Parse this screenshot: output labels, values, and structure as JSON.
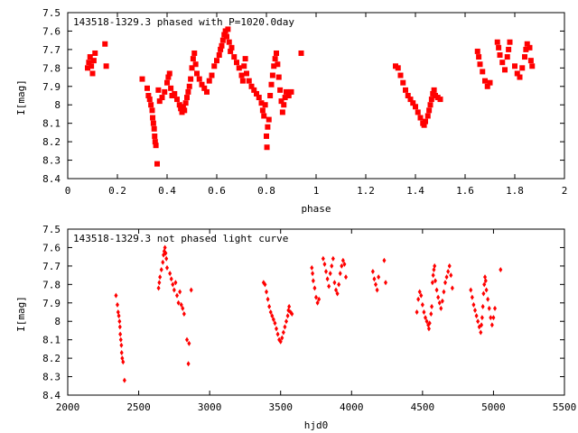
{
  "chart_data": [
    {
      "type": "scatter",
      "title": "143518-1329.3 phased with P=1020.0day",
      "xlabel": "phase",
      "ylabel": "I[mag]",
      "xlim": [
        0,
        2
      ],
      "ylim": [
        7.5,
        8.4
      ],
      "y_inverted": true,
      "x_ticks": [
        0,
        0.2,
        0.4,
        0.6,
        0.8,
        1,
        1.2,
        1.4,
        1.6,
        1.8,
        2
      ],
      "x_tick_labels": [
        "0",
        "0.2",
        "0.4",
        "0.6",
        "0.8",
        "1",
        "1.2",
        "1.4",
        "1.6",
        "1.8",
        "2"
      ],
      "y_ticks": [
        7.5,
        7.6,
        7.7,
        7.8,
        7.9,
        8,
        8.1,
        8.2,
        8.3,
        8.4
      ],
      "y_tick_labels": [
        "7.5",
        "7.6",
        "7.7",
        "7.8",
        "7.9",
        "8",
        "8.1",
        "8.2",
        "8.3",
        "8.4"
      ],
      "marker": "square",
      "color": "#ff0000",
      "grid": false,
      "points": [
        [
          0.08,
          7.8
        ],
        [
          0.085,
          7.77
        ],
        [
          0.09,
          7.74
        ],
        [
          0.095,
          7.79
        ],
        [
          0.1,
          7.83
        ],
        [
          0.105,
          7.76
        ],
        [
          0.11,
          7.72
        ],
        [
          0.15,
          7.67
        ],
        [
          0.155,
          7.79
        ],
        [
          0.3,
          7.86
        ],
        [
          0.32,
          7.91
        ],
        [
          0.325,
          7.95
        ],
        [
          0.33,
          7.97
        ],
        [
          0.335,
          8.0
        ],
        [
          0.34,
          8.03
        ],
        [
          0.342,
          8.07
        ],
        [
          0.345,
          8.1
        ],
        [
          0.348,
          8.13
        ],
        [
          0.35,
          8.17
        ],
        [
          0.352,
          8.2
        ],
        [
          0.355,
          8.22
        ],
        [
          0.36,
          8.32
        ],
        [
          0.365,
          7.92
        ],
        [
          0.37,
          7.98
        ],
        [
          0.38,
          7.96
        ],
        [
          0.39,
          7.93
        ],
        [
          0.4,
          7.88
        ],
        [
          0.405,
          7.85
        ],
        [
          0.41,
          7.83
        ],
        [
          0.415,
          7.91
        ],
        [
          0.42,
          7.95
        ],
        [
          0.43,
          7.94
        ],
        [
          0.44,
          7.97
        ],
        [
          0.45,
          8.0
        ],
        [
          0.455,
          8.02
        ],
        [
          0.46,
          8.04
        ],
        [
          0.465,
          8.01
        ],
        [
          0.47,
          8.03
        ],
        [
          0.475,
          7.99
        ],
        [
          0.48,
          7.96
        ],
        [
          0.485,
          7.93
        ],
        [
          0.49,
          7.9
        ],
        [
          0.495,
          7.86
        ],
        [
          0.5,
          7.8
        ],
        [
          0.505,
          7.75
        ],
        [
          0.51,
          7.72
        ],
        [
          0.515,
          7.78
        ],
        [
          0.52,
          7.83
        ],
        [
          0.53,
          7.86
        ],
        [
          0.54,
          7.89
        ],
        [
          0.55,
          7.91
        ],
        [
          0.56,
          7.93
        ],
        [
          0.57,
          7.87
        ],
        [
          0.58,
          7.84
        ],
        [
          0.59,
          7.79
        ],
        [
          0.6,
          7.76
        ],
        [
          0.61,
          7.73
        ],
        [
          0.615,
          7.7
        ],
        [
          0.62,
          7.68
        ],
        [
          0.625,
          7.65
        ],
        [
          0.63,
          7.62
        ],
        [
          0.635,
          7.6
        ],
        [
          0.64,
          7.63
        ],
        [
          0.645,
          7.59
        ],
        [
          0.65,
          7.66
        ],
        [
          0.655,
          7.71
        ],
        [
          0.66,
          7.69
        ],
        [
          0.67,
          7.74
        ],
        [
          0.68,
          7.77
        ],
        [
          0.69,
          7.8
        ],
        [
          0.7,
          7.84
        ],
        [
          0.705,
          7.87
        ],
        [
          0.71,
          7.79
        ],
        [
          0.715,
          7.75
        ],
        [
          0.72,
          7.83
        ],
        [
          0.73,
          7.87
        ],
        [
          0.74,
          7.9
        ],
        [
          0.75,
          7.92
        ],
        [
          0.76,
          7.94
        ],
        [
          0.77,
          7.96
        ],
        [
          0.78,
          7.99
        ],
        [
          0.785,
          8.03
        ],
        [
          0.79,
          8.06
        ],
        [
          0.795,
          8.0
        ],
        [
          0.8,
          8.17
        ],
        [
          0.802,
          8.23
        ],
        [
          0.805,
          8.12
        ],
        [
          0.81,
          8.08
        ],
        [
          0.815,
          7.95
        ],
        [
          0.82,
          7.89
        ],
        [
          0.825,
          7.84
        ],
        [
          0.83,
          7.79
        ],
        [
          0.835,
          7.75
        ],
        [
          0.84,
          7.72
        ],
        [
          0.845,
          7.78
        ],
        [
          0.85,
          7.85
        ],
        [
          0.855,
          7.92
        ],
        [
          0.86,
          7.98
        ],
        [
          0.865,
          8.04
        ],
        [
          0.87,
          8.0
        ],
        [
          0.875,
          7.96
        ],
        [
          0.88,
          7.93
        ],
        [
          0.89,
          7.95
        ],
        [
          0.9,
          7.93
        ],
        [
          0.94,
          7.72
        ],
        [
          1.32,
          7.79
        ],
        [
          1.33,
          7.8
        ],
        [
          1.34,
          7.84
        ],
        [
          1.35,
          7.88
        ],
        [
          1.36,
          7.92
        ],
        [
          1.37,
          7.95
        ],
        [
          1.38,
          7.97
        ],
        [
          1.39,
          7.99
        ],
        [
          1.4,
          8.01
        ],
        [
          1.41,
          8.04
        ],
        [
          1.42,
          8.07
        ],
        [
          1.43,
          8.1
        ],
        [
          1.435,
          8.11
        ],
        [
          1.44,
          8.09
        ],
        [
          1.45,
          8.06
        ],
        [
          1.455,
          8.03
        ],
        [
          1.46,
          8.0
        ],
        [
          1.465,
          7.97
        ],
        [
          1.47,
          7.94
        ],
        [
          1.475,
          7.92
        ],
        [
          1.48,
          7.95
        ],
        [
          1.49,
          7.96
        ],
        [
          1.5,
          7.97
        ],
        [
          1.65,
          7.71
        ],
        [
          1.655,
          7.74
        ],
        [
          1.66,
          7.78
        ],
        [
          1.67,
          7.82
        ],
        [
          1.68,
          7.87
        ],
        [
          1.69,
          7.9
        ],
        [
          1.7,
          7.88
        ],
        [
          1.73,
          7.66
        ],
        [
          1.735,
          7.69
        ],
        [
          1.74,
          7.73
        ],
        [
          1.75,
          7.77
        ],
        [
          1.76,
          7.81
        ],
        [
          1.77,
          7.74
        ],
        [
          1.775,
          7.7
        ],
        [
          1.78,
          7.66
        ],
        [
          1.8,
          7.79
        ],
        [
          1.81,
          7.83
        ],
        [
          1.82,
          7.85
        ],
        [
          1.83,
          7.8
        ],
        [
          1.84,
          7.74
        ],
        [
          1.845,
          7.7
        ],
        [
          1.85,
          7.67
        ],
        [
          1.86,
          7.69
        ],
        [
          1.865,
          7.76
        ],
        [
          1.87,
          7.79
        ]
      ]
    },
    {
      "type": "scatter",
      "title": "143518-1329.3 not phased light curve",
      "xlabel": "hjd0",
      "ylabel": "I[mag]",
      "xlim": [
        2000,
        5500
      ],
      "ylim": [
        7.5,
        8.4
      ],
      "y_inverted": true,
      "x_ticks": [
        2000,
        2500,
        3000,
        3500,
        4000,
        4500,
        5000,
        5500
      ],
      "x_tick_labels": [
        "2000",
        "2500",
        "3000",
        "3500",
        "4000",
        "4500",
        "5000",
        "5500"
      ],
      "y_ticks": [
        7.5,
        7.6,
        7.7,
        7.8,
        7.9,
        8,
        8.1,
        8.2,
        8.3,
        8.4
      ],
      "y_tick_labels": [
        "7.5",
        "7.6",
        "7.7",
        "7.8",
        "7.9",
        "8",
        "8.1",
        "8.2",
        "8.3",
        "8.4"
      ],
      "marker": "diamond",
      "color": "#ff0000",
      "grid": false,
      "points": [
        [
          2340,
          7.86
        ],
        [
          2350,
          7.91
        ],
        [
          2355,
          7.95
        ],
        [
          2360,
          7.97
        ],
        [
          2365,
          8.0
        ],
        [
          2368,
          8.03
        ],
        [
          2370,
          8.07
        ],
        [
          2374,
          8.1
        ],
        [
          2378,
          8.13
        ],
        [
          2380,
          8.17
        ],
        [
          2384,
          8.2
        ],
        [
          2390,
          8.22
        ],
        [
          2400,
          8.32
        ],
        [
          2640,
          7.82
        ],
        [
          2645,
          7.79
        ],
        [
          2650,
          7.76
        ],
        [
          2660,
          7.72
        ],
        [
          2670,
          7.68
        ],
        [
          2675,
          7.64
        ],
        [
          2680,
          7.62
        ],
        [
          2685,
          7.6
        ],
        [
          2690,
          7.63
        ],
        [
          2695,
          7.66
        ],
        [
          2700,
          7.71
        ],
        [
          2720,
          7.74
        ],
        [
          2730,
          7.77
        ],
        [
          2740,
          7.8
        ],
        [
          2750,
          7.83
        ],
        [
          2760,
          7.79
        ],
        [
          2770,
          7.86
        ],
        [
          2780,
          7.9
        ],
        [
          2790,
          7.84
        ],
        [
          2800,
          7.91
        ],
        [
          2810,
          7.93
        ],
        [
          2820,
          7.96
        ],
        [
          2840,
          8.1
        ],
        [
          2850,
          8.23
        ],
        [
          2855,
          8.12
        ],
        [
          2870,
          7.83
        ],
        [
          3380,
          7.79
        ],
        [
          3390,
          7.8
        ],
        [
          3400,
          7.84
        ],
        [
          3410,
          7.88
        ],
        [
          3420,
          7.92
        ],
        [
          3430,
          7.95
        ],
        [
          3440,
          7.97
        ],
        [
          3450,
          7.99
        ],
        [
          3460,
          8.01
        ],
        [
          3470,
          8.04
        ],
        [
          3480,
          8.07
        ],
        [
          3490,
          8.1
        ],
        [
          3500,
          8.11
        ],
        [
          3510,
          8.09
        ],
        [
          3520,
          8.06
        ],
        [
          3530,
          8.03
        ],
        [
          3540,
          8.0
        ],
        [
          3550,
          7.97
        ],
        [
          3555,
          7.94
        ],
        [
          3560,
          7.92
        ],
        [
          3570,
          7.95
        ],
        [
          3580,
          7.96
        ],
        [
          3720,
          7.71
        ],
        [
          3725,
          7.74
        ],
        [
          3730,
          7.78
        ],
        [
          3740,
          7.82
        ],
        [
          3750,
          7.87
        ],
        [
          3760,
          7.9
        ],
        [
          3770,
          7.88
        ],
        [
          3800,
          7.66
        ],
        [
          3810,
          7.69
        ],
        [
          3820,
          7.73
        ],
        [
          3830,
          7.77
        ],
        [
          3840,
          7.81
        ],
        [
          3850,
          7.74
        ],
        [
          3860,
          7.7
        ],
        [
          3870,
          7.66
        ],
        [
          3880,
          7.79
        ],
        [
          3890,
          7.83
        ],
        [
          3900,
          7.85
        ],
        [
          3910,
          7.8
        ],
        [
          3920,
          7.74
        ],
        [
          3930,
          7.7
        ],
        [
          3940,
          7.67
        ],
        [
          3950,
          7.69
        ],
        [
          3960,
          7.76
        ],
        [
          4150,
          7.73
        ],
        [
          4160,
          7.77
        ],
        [
          4170,
          7.8
        ],
        [
          4180,
          7.83
        ],
        [
          4190,
          7.76
        ],
        [
          4230,
          7.67
        ],
        [
          4240,
          7.79
        ],
        [
          4460,
          7.95
        ],
        [
          4470,
          7.88
        ],
        [
          4480,
          7.84
        ],
        [
          4490,
          7.86
        ],
        [
          4500,
          7.91
        ],
        [
          4510,
          7.95
        ],
        [
          4520,
          7.98
        ],
        [
          4530,
          8.0
        ],
        [
          4540,
          8.02
        ],
        [
          4545,
          8.04
        ],
        [
          4550,
          8.01
        ],
        [
          4560,
          7.96
        ],
        [
          4565,
          7.92
        ],
        [
          4570,
          7.79
        ],
        [
          4575,
          7.75
        ],
        [
          4580,
          7.72
        ],
        [
          4585,
          7.7
        ],
        [
          4590,
          7.78
        ],
        [
          4600,
          7.83
        ],
        [
          4610,
          7.87
        ],
        [
          4620,
          7.9
        ],
        [
          4630,
          7.93
        ],
        [
          4640,
          7.89
        ],
        [
          4650,
          7.84
        ],
        [
          4660,
          7.79
        ],
        [
          4670,
          7.76
        ],
        [
          4680,
          7.73
        ],
        [
          4690,
          7.7
        ],
        [
          4700,
          7.75
        ],
        [
          4710,
          7.82
        ],
        [
          4840,
          7.83
        ],
        [
          4850,
          7.87
        ],
        [
          4860,
          7.91
        ],
        [
          4870,
          7.94
        ],
        [
          4880,
          7.97
        ],
        [
          4890,
          8.0
        ],
        [
          4900,
          8.03
        ],
        [
          4910,
          8.06
        ],
        [
          4915,
          8.02
        ],
        [
          4920,
          7.98
        ],
        [
          4925,
          7.92
        ],
        [
          4930,
          7.85
        ],
        [
          4935,
          7.8
        ],
        [
          4940,
          7.76
        ],
        [
          4945,
          7.78
        ],
        [
          4950,
          7.83
        ],
        [
          4960,
          7.88
        ],
        [
          4970,
          7.93
        ],
        [
          4980,
          7.98
        ],
        [
          4990,
          8.02
        ],
        [
          5000,
          7.98
        ],
        [
          5010,
          7.93
        ],
        [
          5050,
          7.72
        ]
      ]
    }
  ]
}
